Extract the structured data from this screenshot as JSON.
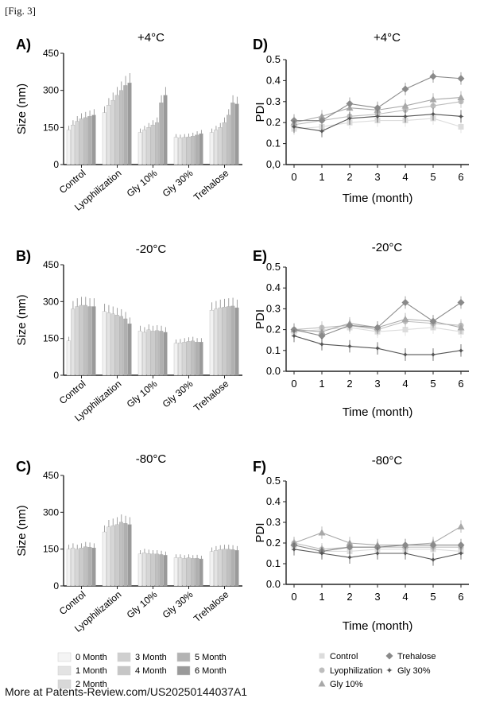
{
  "figure_label": "[Fig. 3]",
  "footer": "More at Patents-Review.com/US20250144037A1",
  "chart_data": [
    {
      "panel": "A)",
      "type": "bar",
      "title": "+4°C",
      "xlabel": "",
      "ylabel": "Size (nm)",
      "ylim": [
        0,
        450
      ],
      "yticks": [
        0,
        150,
        300,
        450
      ],
      "categories": [
        "Control",
        "Lyophilization",
        "Gly 10%",
        "Gly 30%",
        "Trehalose"
      ],
      "series": [
        {
          "name": "0 Month",
          "values": [
            140,
            210,
            130,
            110,
            130
          ]
        },
        {
          "name": "1 Month",
          "values": [
            160,
            240,
            140,
            108,
            140
          ]
        },
        {
          "name": "2 Month",
          "values": [
            175,
            260,
            150,
            110,
            150
          ]
        },
        {
          "name": "3 Month",
          "values": [
            185,
            280,
            160,
            112,
            170
          ]
        },
        {
          "name": "4 Month",
          "values": [
            190,
            300,
            170,
            115,
            200
          ]
        },
        {
          "name": "5 Month",
          "values": [
            195,
            320,
            250,
            120,
            250
          ]
        },
        {
          "name": "6 Month",
          "values": [
            200,
            330,
            280,
            125,
            245
          ]
        }
      ]
    },
    {
      "panel": "B)",
      "type": "bar",
      "title": "-20°C",
      "xlabel": "",
      "ylabel": "Size (nm)",
      "ylim": [
        0,
        450
      ],
      "yticks": [
        0,
        150,
        300,
        450
      ],
      "categories": [
        "Control",
        "Lyophilization",
        "Gly 10%",
        "Gly 30%",
        "Trehalose"
      ],
      "series": [
        {
          "name": "0 Month",
          "values": [
            140,
            260,
            180,
            130,
            265
          ]
        },
        {
          "name": "1 Month",
          "values": [
            270,
            255,
            175,
            132,
            270
          ]
        },
        {
          "name": "2 Month",
          "values": [
            280,
            250,
            185,
            135,
            275
          ]
        },
        {
          "name": "3 Month",
          "values": [
            285,
            245,
            180,
            138,
            278
          ]
        },
        {
          "name": "4 Month",
          "values": [
            285,
            240,
            182,
            140,
            280
          ]
        },
        {
          "name": "5 Month",
          "values": [
            280,
            230,
            180,
            135,
            282
          ]
        },
        {
          "name": "6 Month",
          "values": [
            280,
            210,
            175,
            135,
            275
          ]
        }
      ]
    },
    {
      "panel": "C)",
      "type": "bar",
      "title": "-80°C",
      "xlabel": "",
      "ylabel": "Size (nm)",
      "ylim": [
        0,
        450
      ],
      "yticks": [
        0,
        150,
        300,
        450
      ],
      "categories": [
        "Control",
        "Lyophilization",
        "Gly 10%",
        "Gly 30%",
        "Trehalose"
      ],
      "series": [
        {
          "name": "0 Month",
          "values": [
            150,
            220,
            130,
            115,
            140
          ]
        },
        {
          "name": "1 Month",
          "values": [
            155,
            240,
            135,
            115,
            145
          ]
        },
        {
          "name": "2 Month",
          "values": [
            150,
            245,
            132,
            112,
            148
          ]
        },
        {
          "name": "3 Month",
          "values": [
            155,
            250,
            130,
            115,
            150
          ]
        },
        {
          "name": "4 Month",
          "values": [
            160,
            260,
            130,
            112,
            150
          ]
        },
        {
          "name": "5 Month",
          "values": [
            158,
            255,
            128,
            113,
            148
          ]
        },
        {
          "name": "6 Month",
          "values": [
            155,
            250,
            125,
            110,
            145
          ]
        }
      ]
    },
    {
      "panel": "D)",
      "type": "line",
      "title": "+4°C",
      "xlabel": "Time (month)",
      "ylabel": "PDI",
      "ylim": [
        0,
        0.5
      ],
      "yticks": [
        "0,0",
        "0.1",
        "0.2",
        "0.3",
        "0.4",
        "0.5"
      ],
      "xlim": [
        0,
        6
      ],
      "x": [
        0,
        1,
        2,
        3,
        4,
        5,
        6
      ],
      "series": [
        {
          "name": "Control",
          "values": [
            0.17,
            0.18,
            0.2,
            0.21,
            0.21,
            0.22,
            0.18
          ]
        },
        {
          "name": "Lyophilization",
          "values": [
            0.19,
            0.21,
            0.23,
            0.24,
            0.26,
            0.28,
            0.3
          ]
        },
        {
          "name": "Gly 10%",
          "values": [
            0.2,
            0.23,
            0.27,
            0.26,
            0.28,
            0.31,
            0.32
          ]
        },
        {
          "name": "Trehalose",
          "values": [
            0.21,
            0.21,
            0.29,
            0.27,
            0.36,
            0.42,
            0.41
          ]
        },
        {
          "name": "Gly 30%",
          "values": [
            0.18,
            0.16,
            0.22,
            0.23,
            0.23,
            0.24,
            0.23
          ]
        }
      ]
    },
    {
      "panel": "E)",
      "type": "line",
      "title": "-20°C",
      "xlabel": "Time (month)",
      "ylabel": "PDI",
      "ylim": [
        0,
        0.5
      ],
      "yticks": [
        "0.0",
        "0.1",
        "0.2",
        "0.3",
        "0.4",
        "0.5"
      ],
      "xlim": [
        0,
        6
      ],
      "x": [
        0,
        1,
        2,
        3,
        4,
        5,
        6
      ],
      "series": [
        {
          "name": "Control",
          "values": [
            0.19,
            0.2,
            0.21,
            0.19,
            0.2,
            0.21,
            0.19
          ]
        },
        {
          "name": "Lyophilization",
          "values": [
            0.2,
            0.21,
            0.22,
            0.2,
            0.24,
            0.23,
            0.22
          ]
        },
        {
          "name": "Gly 10%",
          "values": [
            0.2,
            0.19,
            0.23,
            0.21,
            0.25,
            0.24,
            0.21
          ]
        },
        {
          "name": "Trehalose",
          "values": [
            0.2,
            0.17,
            0.22,
            0.21,
            0.33,
            0.24,
            0.33
          ]
        },
        {
          "name": "Gly 30%",
          "values": [
            0.17,
            0.13,
            0.12,
            0.11,
            0.08,
            0.08,
            0.1
          ]
        }
      ]
    },
    {
      "panel": "F)",
      "type": "line",
      "title": "-80°C",
      "xlabel": "Time (month)",
      "ylabel": "PDI",
      "ylim": [
        0,
        0.5
      ],
      "yticks": [
        "0.0",
        "0.1",
        "0.2",
        "0.3",
        "0.4",
        "0.5"
      ],
      "xlim": [
        0,
        6
      ],
      "x": [
        0,
        1,
        2,
        3,
        4,
        5,
        6
      ],
      "series": [
        {
          "name": "Control",
          "values": [
            0.19,
            0.16,
            0.16,
            0.17,
            0.17,
            0.17,
            0.16
          ]
        },
        {
          "name": "Lyophilization",
          "values": [
            0.2,
            0.17,
            0.18,
            0.18,
            0.18,
            0.18,
            0.18
          ]
        },
        {
          "name": "Gly 10%",
          "values": [
            0.2,
            0.25,
            0.2,
            0.19,
            0.19,
            0.2,
            0.28
          ]
        },
        {
          "name": "Trehalose",
          "values": [
            0.19,
            0.16,
            0.18,
            0.18,
            0.19,
            0.19,
            0.19
          ]
        },
        {
          "name": "Gly 30%",
          "values": [
            0.17,
            0.15,
            0.13,
            0.15,
            0.15,
            0.12,
            0.15
          ]
        }
      ]
    }
  ],
  "bar_legend": {
    "items": [
      "0 Month",
      "3 Month",
      "5 Month",
      "1 Month",
      "4 Month",
      "6 Month",
      "2 Month"
    ],
    "colors": [
      "#f4f4f4",
      "#cfcfcf",
      "#b3b3b3",
      "#e3e3e3",
      "#c6c6c6",
      "#9a9a9a",
      "#d8d8d8"
    ]
  },
  "line_legend": {
    "items": [
      "Control",
      "Trehalose",
      "Lyophilization",
      "Gly 30%",
      "Gly 10%"
    ],
    "markers": [
      "square",
      "diamond",
      "circle",
      "star",
      "triangle"
    ]
  },
  "colors": {
    "bar_series": [
      "#f2f2f2",
      "#e3e3e3",
      "#d6d6d6",
      "#cbcbcb",
      "#c0c0c0",
      "#b0b0b0",
      "#9a9a9a"
    ],
    "line_series": [
      "#dcdcdc",
      "#bdbdbd",
      "#a8a8a8",
      "#8a8a8a",
      "#555555"
    ],
    "axis": "#222222"
  }
}
